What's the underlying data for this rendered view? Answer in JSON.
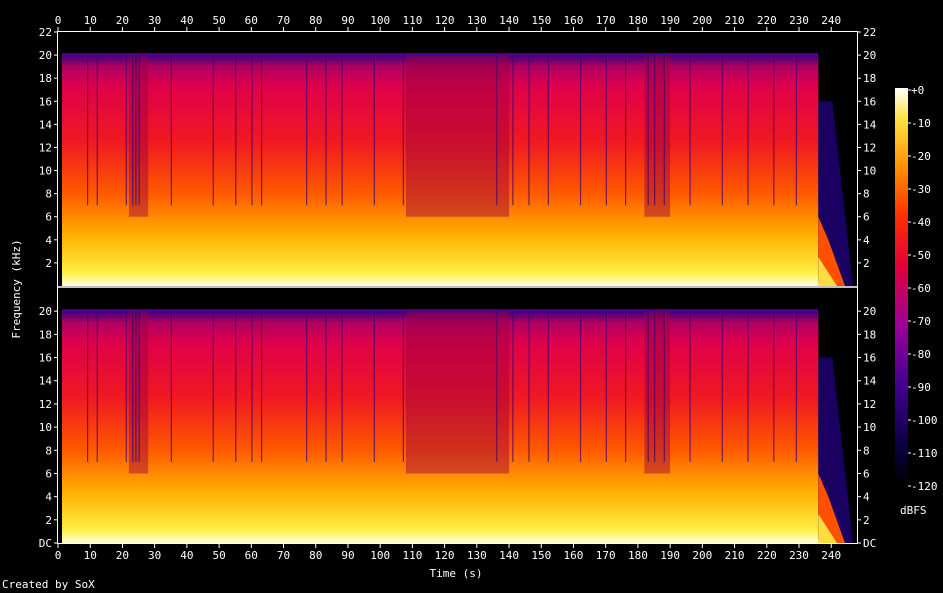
{
  "chart_data": {
    "type": "heatmap",
    "title": "",
    "xlabel": "Time (s)",
    "ylabel": "Frequency (kHz)",
    "xlim": [
      0,
      248
    ],
    "ylim": [
      0,
      22
    ],
    "x_ticks": [
      0,
      10,
      20,
      30,
      40,
      50,
      60,
      70,
      80,
      90,
      100,
      110,
      120,
      130,
      140,
      150,
      160,
      170,
      180,
      190,
      200,
      210,
      220,
      230,
      240
    ],
    "y_ticks_top": [
      "2",
      "4",
      "6",
      "8",
      "10",
      "12",
      "14",
      "16",
      "18",
      "20",
      "22"
    ],
    "y_ticks_bottom": [
      "DC",
      "2",
      "4",
      "6",
      "8",
      "10",
      "12",
      "14",
      "16",
      "18",
      "20"
    ],
    "channels": 2,
    "colorbar": {
      "label": "dBFS",
      "range": [
        -120,
        0
      ],
      "ticks": [
        "+0",
        "-10",
        "-20",
        "-30",
        "-40",
        "-50",
        "-60",
        "-70",
        "-80",
        "-90",
        "-100",
        "-110",
        "-120"
      ]
    },
    "audio_cutoff_khz": 20,
    "fade_start_s": 236,
    "lowpass_after_fade_khz": 16,
    "quiet_sections_s": [
      [
        22,
        28
      ],
      [
        108,
        140
      ],
      [
        182,
        190
      ]
    ]
  },
  "colors": {
    "background": "#000000",
    "text": "#ffffff",
    "hot": "#ffff99",
    "mid": "#ff2010",
    "cold": "#1a0050"
  },
  "footer": {
    "credit": "Created by SoX"
  }
}
